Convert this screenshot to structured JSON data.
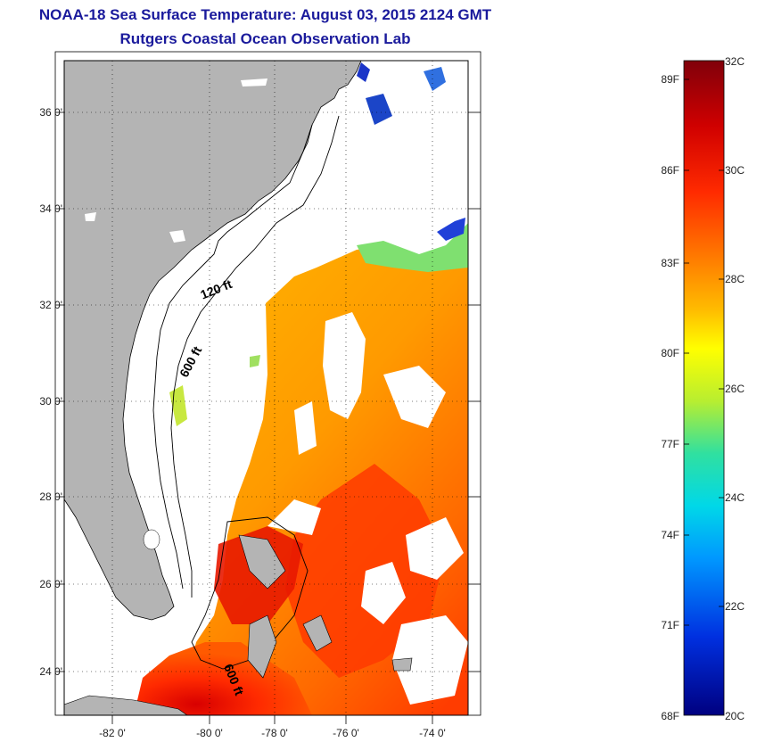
{
  "title": "NOAA-18 Sea Surface Temperature:  August 03, 2015 2124 GMT",
  "subtitle": "Rutgers Coastal Ocean Observation Lab",
  "map": {
    "lat_labels": [
      "36 0'",
      "34 0'",
      "32 0'",
      "30 0'",
      "28 0'",
      "26 0'",
      "24 0'"
    ],
    "lon_labels": [
      "-82 0'",
      "-80 0'",
      "-78 0'",
      "-76 0'",
      "-74 0'"
    ],
    "isobaths": [
      "120 ft",
      "600 ft",
      "600 ft"
    ],
    "land_color": "#b4b4b4"
  },
  "colorbar": {
    "fahrenheit_labels": [
      "89F",
      "86F",
      "83F",
      "80F",
      "77F",
      "74F",
      "71F",
      "68F"
    ],
    "celsius_labels": [
      "32C",
      "30C",
      "28C",
      "26C",
      "24C",
      "22C",
      "20C"
    ],
    "colors": [
      "#80000a",
      "#d00000",
      "#ff3000",
      "#ff8800",
      "#ffdd00",
      "#ccee22",
      "#40e8a0",
      "#00d8e0",
      "#0090ff",
      "#0030e0",
      "#000080"
    ]
  }
}
